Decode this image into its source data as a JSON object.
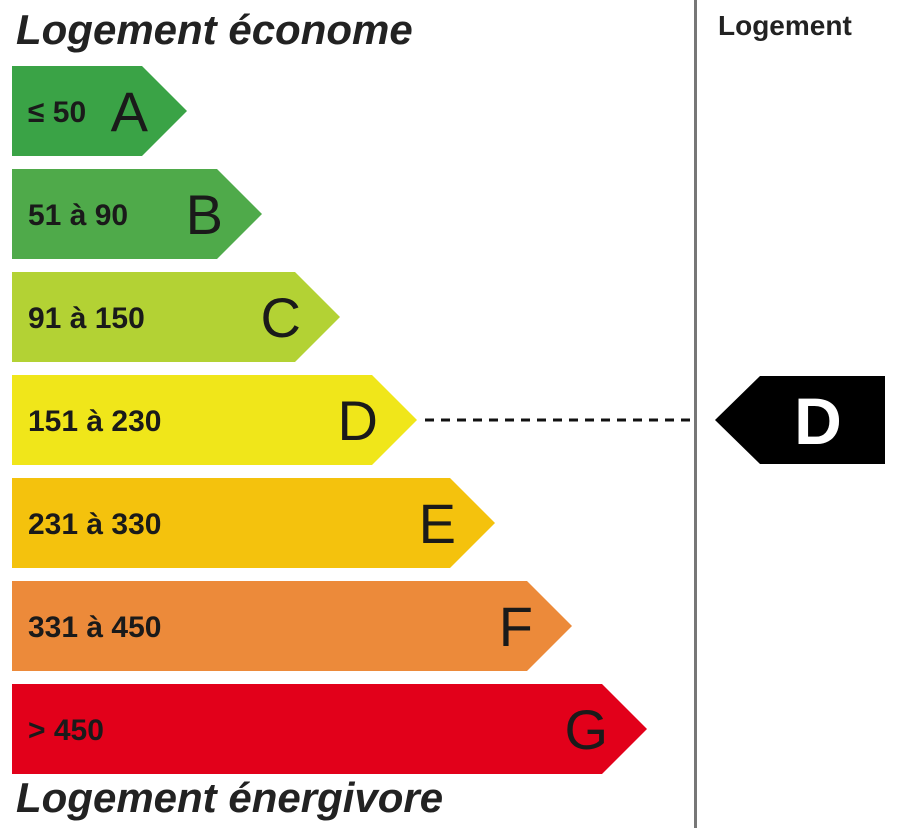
{
  "header": {
    "top_label": "Logement économe",
    "bottom_label": "Logement énergivore",
    "column_label": "Logement"
  },
  "chart_data": {
    "type": "bar",
    "categories": [
      "A",
      "B",
      "C",
      "D",
      "E",
      "F",
      "G"
    ],
    "ranges": [
      "≤ 50",
      "51 à 90",
      "91 à 150",
      "151 à 230",
      "231 à 330",
      "331 à 450",
      "> 450"
    ],
    "colors": [
      "#3aa346",
      "#4faa4a",
      "#b3d234",
      "#f0e61a",
      "#f4c20d",
      "#ec8a3a",
      "#e2001a"
    ],
    "current_class": "D",
    "current_color": "#000000"
  }
}
